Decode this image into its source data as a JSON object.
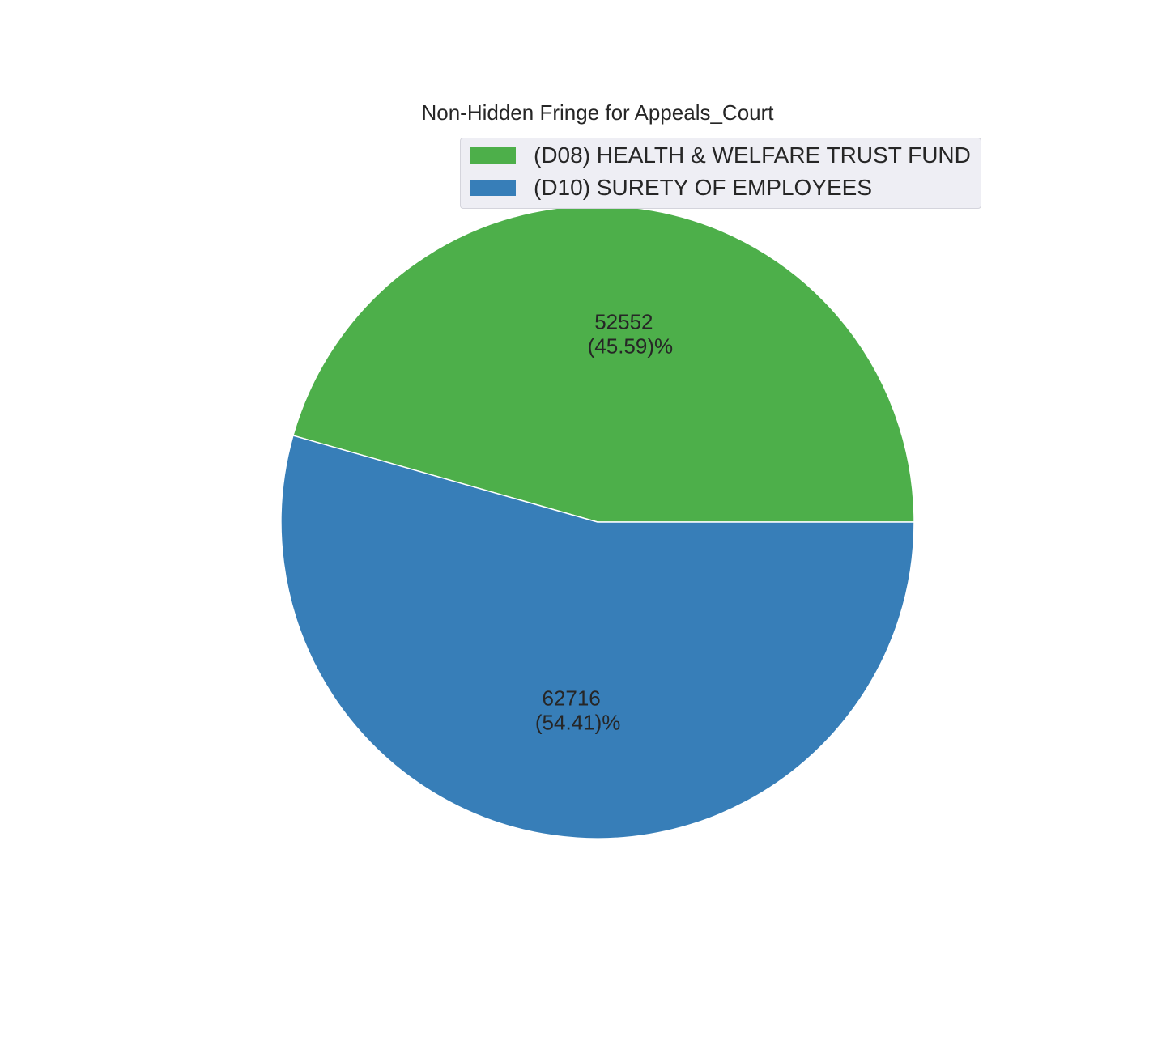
{
  "chart_data": {
    "type": "pie",
    "title": "Non-Hidden Fringe for Appeals_Court",
    "legend_placement": "upper-right",
    "slices": [
      {
        "label": "(D08) HEALTH & WELFARE TRUST FUND",
        "value": 52552,
        "value_text": "52552",
        "percent_text": "(45.59)%",
        "color": "#4daf4a"
      },
      {
        "label": "(D10) SURETY OF EMPLOYEES",
        "value": 62716,
        "value_text": "62716",
        "percent_text": "(54.41)%",
        "color": "#377eb8"
      }
    ]
  }
}
